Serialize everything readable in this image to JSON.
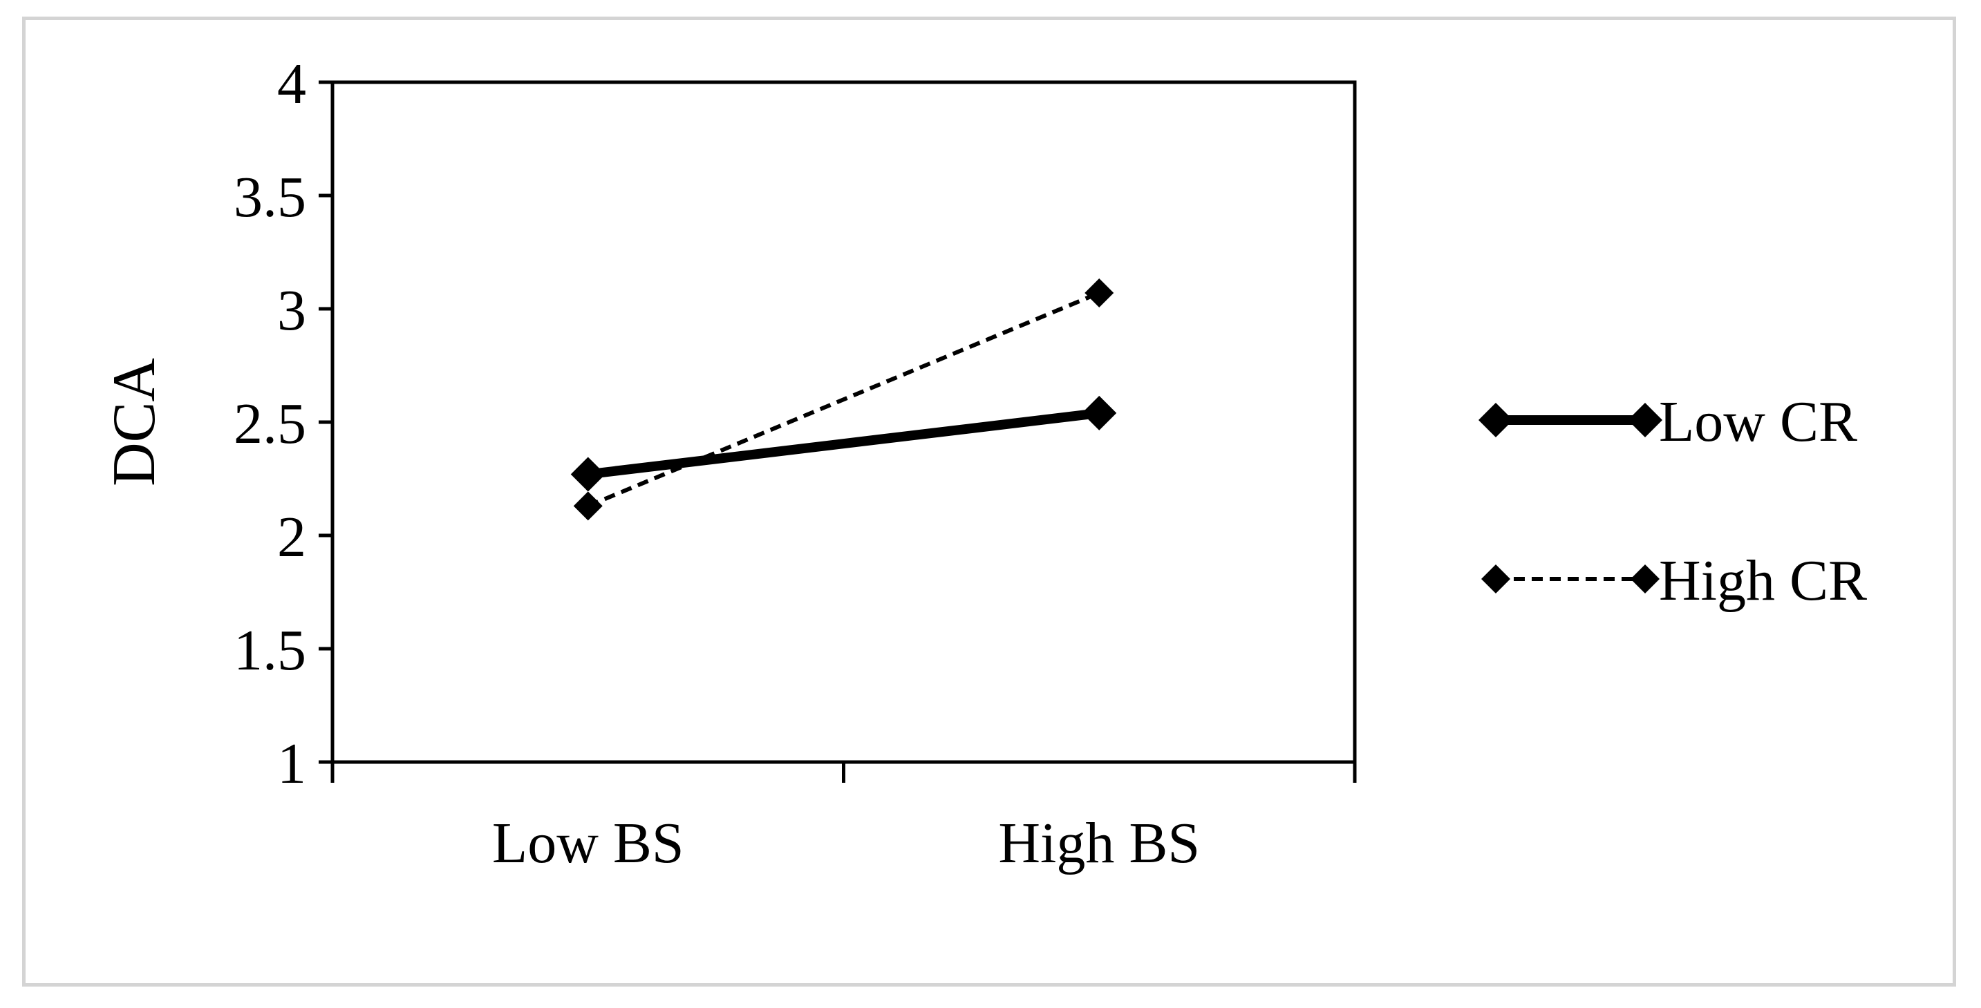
{
  "chart_data": {
    "type": "line",
    "title": "",
    "xlabel": "",
    "ylabel": "DCA",
    "categories": [
      "Low BS",
      "High BS"
    ],
    "ylim": [
      1,
      4
    ],
    "yticks": [
      "1",
      "1.5",
      "2",
      "2.5",
      "3",
      "3.5",
      "4"
    ],
    "grid": false,
    "legend_position": "right",
    "series": [
      {
        "name": "Low CR",
        "values": [
          2.27,
          2.54
        ],
        "line_style": "solid",
        "marker": "diamond",
        "color": "#000000"
      },
      {
        "name": "High CR",
        "values": [
          2.13,
          3.07
        ],
        "line_style": "dashed",
        "marker": "diamond",
        "color": "#000000"
      }
    ]
  }
}
